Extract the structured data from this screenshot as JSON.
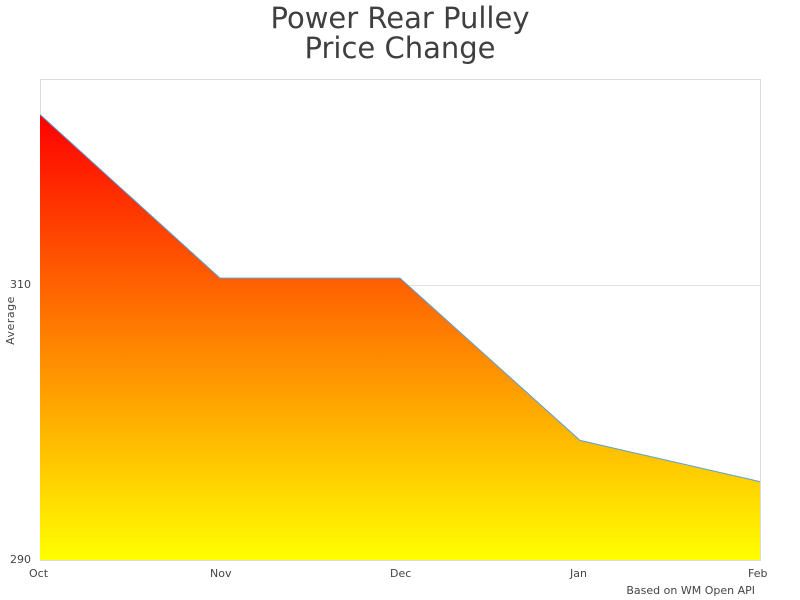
{
  "chart_data": {
    "type": "area",
    "title": "Power Rear Pulley\nPrice Change",
    "title_lines": [
      "Power Rear Pulley",
      "Price Change"
    ],
    "categories": [
      "Oct",
      "Nov",
      "Dec",
      "Jan",
      "Feb"
    ],
    "series": [
      {
        "name": "Average",
        "values": [
          322.4,
          310.5,
          310.5,
          298.7,
          295.7
        ]
      }
    ],
    "xlabel": "",
    "ylabel": "Average",
    "ylim": [
      290,
      326
    ],
    "yticks": [
      290,
      310
    ],
    "grid": true,
    "legend": null,
    "fill_gradient": {
      "top": "#ff0000",
      "bottom": "#ffff00"
    },
    "line_color": "#5aa0d8",
    "credit": "Based on WM Open API"
  }
}
